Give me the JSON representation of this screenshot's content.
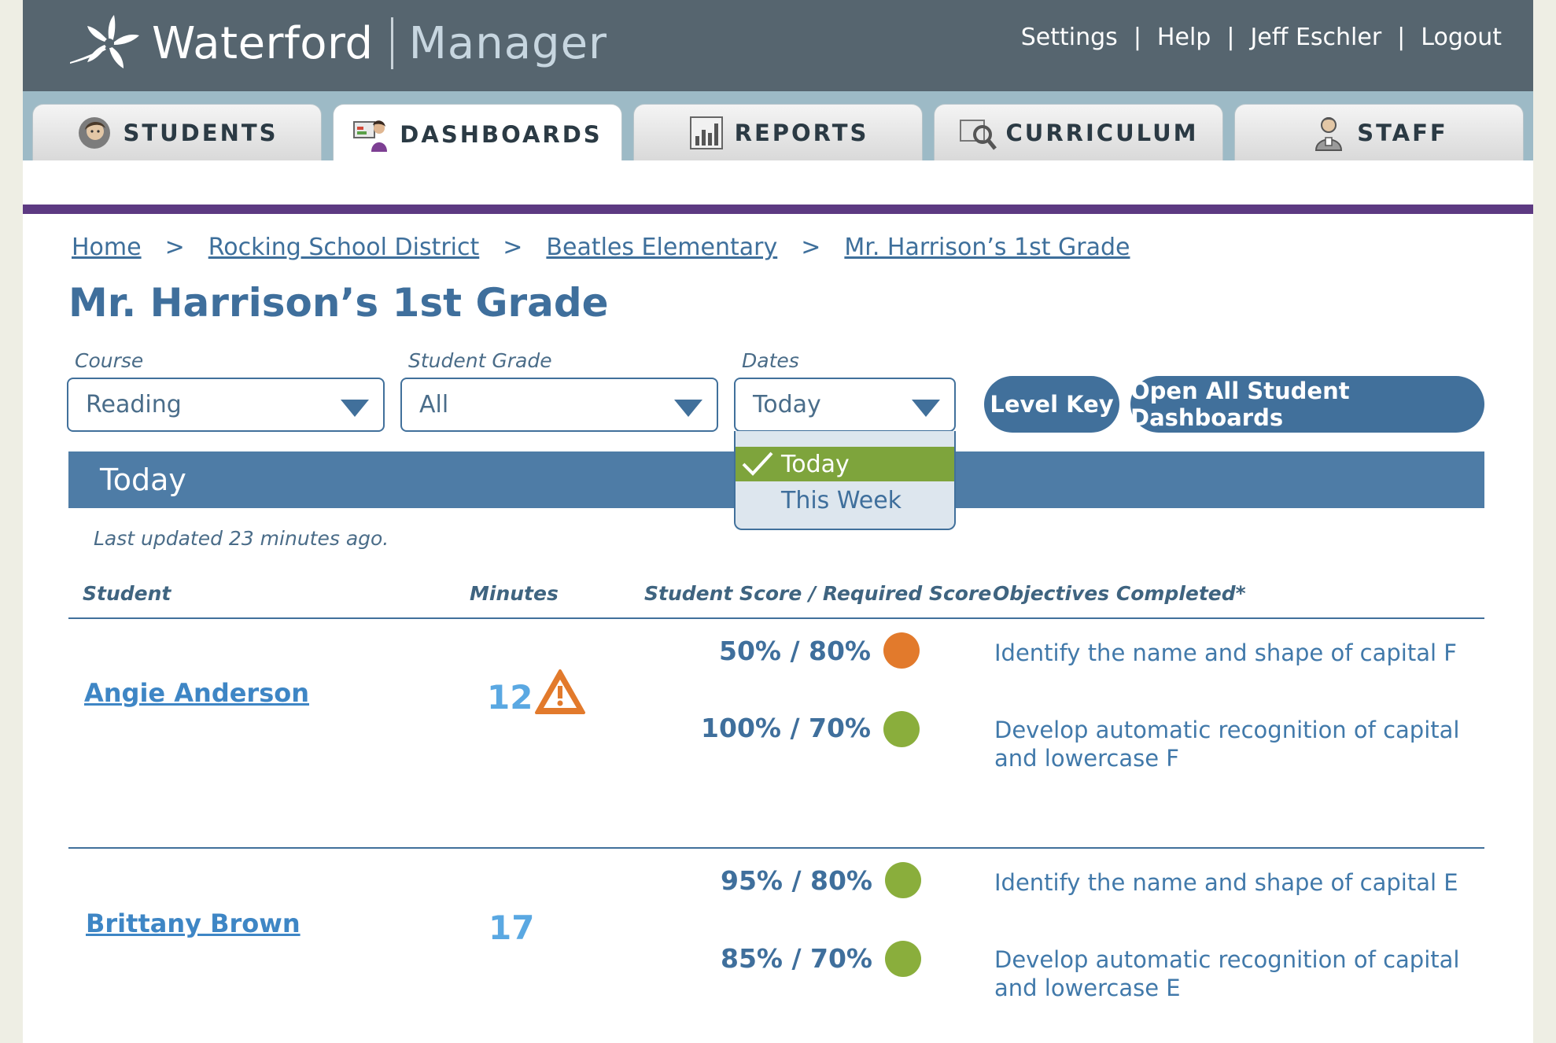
{
  "header": {
    "brand": "Waterford",
    "product": "Manager",
    "links": {
      "settings": "Settings",
      "help": "Help",
      "user": "Jeff Eschler",
      "logout": "Logout"
    },
    "separator": "|"
  },
  "tabs": [
    {
      "label": "STUDENTS",
      "icon": "student-icon"
    },
    {
      "label": "DASHBOARDS",
      "icon": "dashboard-icon",
      "active": true
    },
    {
      "label": "REPORTS",
      "icon": "bar-chart-icon"
    },
    {
      "label": "CURRICULUM",
      "icon": "curriculum-icon"
    },
    {
      "label": "STAFF",
      "icon": "staff-icon"
    }
  ],
  "breadcrumb": {
    "items": [
      "Home",
      "Rocking School District",
      "Beatles Elementary",
      "Mr. Harrison’s 1st Grade"
    ],
    "separator": ">"
  },
  "page_title": "Mr. Harrison’s 1st Grade",
  "filters": {
    "course": {
      "label": "Course",
      "value": "Reading"
    },
    "grade": {
      "label": "Student Grade",
      "value": "All"
    },
    "dates": {
      "label": "Dates",
      "value": "Today",
      "options": [
        "Today",
        "This Week"
      ],
      "selected": "Today"
    }
  },
  "buttons": {
    "level_key": "Level Key",
    "open_all": "Open All Student Dashboards"
  },
  "band_title": "Today",
  "last_updated": "Last updated 23 minutes ago.",
  "table": {
    "headers": {
      "student": "Student",
      "minutes": "Minutes",
      "score": "Student Score / Required Score",
      "objectives": "Objectives Completed*"
    },
    "rows": [
      {
        "student": "Angie Anderson",
        "minutes": "12",
        "warning": true,
        "scores": [
          {
            "text": "50% / 80%",
            "status": "below",
            "color": "#e27a2c",
            "objective": "Identify the name and shape of capital F"
          },
          {
            "text": "100%  / 70%",
            "status": "met",
            "color": "#8aae3c",
            "objective": "Develop automatic recognition of capital and lowercase F"
          }
        ]
      },
      {
        "student": "Brittany Brown",
        "minutes": "17",
        "warning": false,
        "scores": [
          {
            "text": "95% / 80%",
            "status": "met",
            "color": "#8aae3c",
            "objective": "Identify the name and shape of capital E"
          },
          {
            "text": "85% / 70%",
            "status": "met",
            "color": "#8aae3c",
            "objective": "Develop automatic recognition of capital and lowercase E"
          }
        ]
      }
    ]
  },
  "colors": {
    "header": "#56656f",
    "accent": "#41709b",
    "purple_rule": "#5d3a82",
    "selected": "#7ea43c"
  }
}
